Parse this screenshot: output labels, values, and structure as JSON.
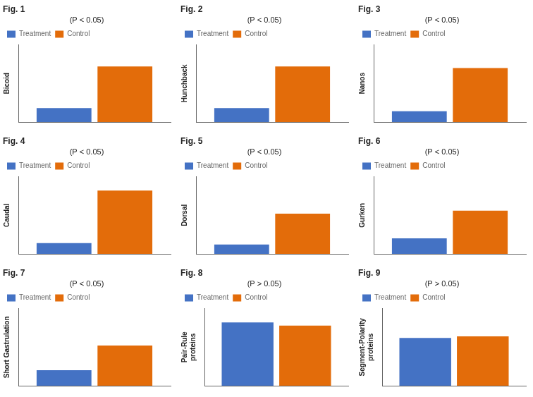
{
  "chart_data": [
    {
      "type": "bar",
      "title": "Fig. 1",
      "ylabel": "Bicoid",
      "annotation": "(P < 0.05)",
      "categories": [
        null
      ],
      "series": [
        {
          "name": "Treatment",
          "color": "#4472C4",
          "values": [
            0.18
          ]
        },
        {
          "name": "Control",
          "color": "#E36C0A",
          "values": [
            0.72
          ]
        }
      ],
      "ylim": [
        0,
        1.0
      ],
      "tick_labels": false,
      "grid": false,
      "legend": "upper left"
    },
    {
      "type": "bar",
      "title": "Fig. 2",
      "ylabel": "Hunchback",
      "annotation": "(P < 0.05)",
      "categories": [
        null
      ],
      "series": [
        {
          "name": "Treatment",
          "color": "#4472C4",
          "values": [
            0.18
          ]
        },
        {
          "name": "Control",
          "color": "#E36C0A",
          "values": [
            0.72
          ]
        }
      ],
      "ylim": [
        0,
        1.0
      ],
      "tick_labels": false,
      "grid": false,
      "legend": "upper left"
    },
    {
      "type": "bar",
      "title": "Fig. 3",
      "ylabel": "Nanos",
      "annotation": "(P < 0.05)",
      "categories": [
        null
      ],
      "series": [
        {
          "name": "Treatment",
          "color": "#4472C4",
          "values": [
            0.14
          ]
        },
        {
          "name": "Control",
          "color": "#E36C0A",
          "values": [
            0.7
          ]
        }
      ],
      "ylim": [
        0,
        1.0
      ],
      "tick_labels": false,
      "grid": false,
      "legend": "upper left"
    },
    {
      "type": "bar",
      "title": "Fig. 4",
      "ylabel": "Caudal",
      "annotation": "(P < 0.05)",
      "categories": [
        null
      ],
      "series": [
        {
          "name": "Treatment",
          "color": "#4472C4",
          "values": [
            0.14
          ]
        },
        {
          "name": "Control",
          "color": "#E36C0A",
          "values": [
            0.82
          ]
        }
      ],
      "ylim": [
        0,
        1.0
      ],
      "tick_labels": false,
      "grid": false,
      "legend": "upper left"
    },
    {
      "type": "bar",
      "title": "Fig. 5",
      "ylabel": "Dorsal",
      "annotation": "(P < 0.05)",
      "categories": [
        null
      ],
      "series": [
        {
          "name": "Treatment",
          "color": "#4472C4",
          "values": [
            0.12
          ]
        },
        {
          "name": "Control",
          "color": "#E36C0A",
          "values": [
            0.52
          ]
        }
      ],
      "ylim": [
        0,
        1.0
      ],
      "tick_labels": false,
      "grid": false,
      "legend": "upper left"
    },
    {
      "type": "bar",
      "title": "Fig. 6",
      "ylabel": "Gurken",
      "annotation": "(P < 0.05)",
      "categories": [
        null
      ],
      "series": [
        {
          "name": "Treatment",
          "color": "#4472C4",
          "values": [
            0.2
          ]
        },
        {
          "name": "Control",
          "color": "#E36C0A",
          "values": [
            0.56
          ]
        }
      ],
      "ylim": [
        0,
        1.0
      ],
      "tick_labels": false,
      "grid": false,
      "legend": "upper left"
    },
    {
      "type": "bar",
      "title": "Fig. 7",
      "ylabel": "Short Gastrulation",
      "annotation": "(P < 0.05)",
      "categories": [
        null
      ],
      "series": [
        {
          "name": "Treatment",
          "color": "#4472C4",
          "values": [
            0.2
          ]
        },
        {
          "name": "Control",
          "color": "#E36C0A",
          "values": [
            0.52
          ]
        }
      ],
      "ylim": [
        0,
        1.0
      ],
      "tick_labels": false,
      "grid": false,
      "legend": "upper left"
    },
    {
      "type": "bar",
      "title": "Fig. 8",
      "ylabel": "Pair-Rule\nproteins",
      "annotation": "(P > 0.05)",
      "categories": [
        null
      ],
      "series": [
        {
          "name": "Treatment",
          "color": "#4472C4",
          "values": [
            0.82
          ]
        },
        {
          "name": "Control",
          "color": "#E36C0A",
          "values": [
            0.78
          ]
        }
      ],
      "ylim": [
        0,
        1.0
      ],
      "tick_labels": false,
      "grid": false,
      "legend": "upper left"
    },
    {
      "type": "bar",
      "title": "Fig. 9",
      "ylabel": "Segment-Polarity\nproteins",
      "annotation": "(P > 0.05)",
      "categories": [
        null
      ],
      "series": [
        {
          "name": "Treatment",
          "color": "#4472C4",
          "values": [
            0.62
          ]
        },
        {
          "name": "Control",
          "color": "#E36C0A",
          "values": [
            0.64
          ]
        }
      ],
      "ylim": [
        0,
        1.0
      ],
      "tick_labels": false,
      "grid": false,
      "legend": "upper left"
    }
  ]
}
